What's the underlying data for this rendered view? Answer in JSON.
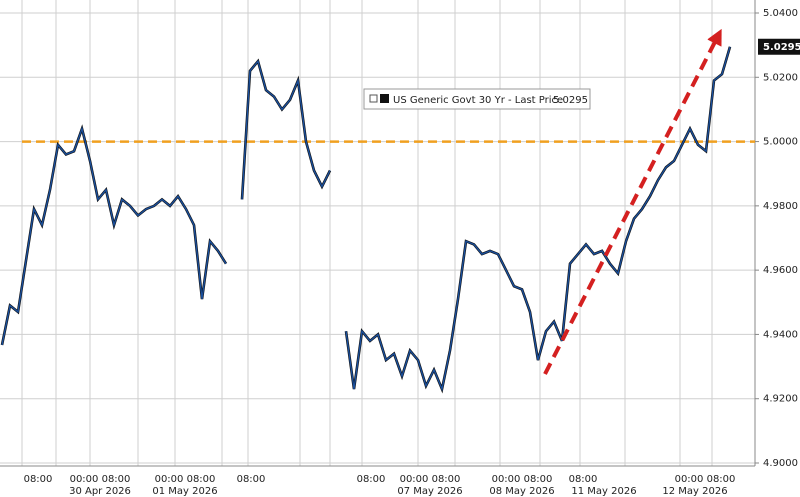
{
  "chart_data": {
    "type": "line",
    "series": [
      {
        "name": "US Generic Govt 30 Yr - Last Price",
        "color": "#1a4f9c",
        "values": [
          4.9367,
          4.949,
          4.947,
          4.963,
          4.979,
          4.974,
          4.985,
          4.999,
          4.996,
          4.997,
          5.004,
          4.994,
          4.982,
          4.985,
          4.974,
          4.982,
          4.98,
          4.977,
          4.979,
          4.98,
          4.982,
          4.98,
          4.983,
          4.979,
          4.974,
          4.951,
          4.969,
          4.966,
          4.962,
          null,
          4.982,
          5.022,
          5.025,
          5.016,
          5.014,
          5.01,
          5.013,
          5.019,
          5.0,
          4.991,
          4.986,
          4.991,
          null,
          4.941,
          4.923,
          4.941,
          4.938,
          4.94,
          4.932,
          4.934,
          4.927,
          4.935,
          4.932,
          4.924,
          4.929,
          4.923,
          4.935,
          4.951,
          4.969,
          4.968,
          4.965,
          4.966,
          4.965,
          4.96,
          4.955,
          4.954,
          4.947,
          4.932,
          4.941,
          4.944,
          4.938,
          4.962,
          4.965,
          4.968,
          4.965,
          4.966,
          4.962,
          4.959,
          4.969,
          4.976,
          4.979,
          4.983,
          4.988,
          4.992,
          4.994,
          4.999,
          5.004,
          4.999,
          4.997,
          5.019,
          5.021,
          5.0295
        ]
      }
    ],
    "last_price": 5.0295,
    "reference_line": {
      "value": 5.0,
      "color": "#f0a020"
    },
    "ylim": [
      4.9,
      5.04
    ],
    "yticks": [
      {
        "value": 4.9,
        "label": "4.9000"
      },
      {
        "value": 4.92,
        "label": "4.9200"
      },
      {
        "value": 4.94,
        "label": "4.9400"
      },
      {
        "value": 4.96,
        "label": "4.9600"
      },
      {
        "value": 4.98,
        "label": "4.9800"
      },
      {
        "value": 5.0,
        "label": "5.0000"
      },
      {
        "value": 5.02,
        "label": "5.0200"
      },
      {
        "value": 5.04,
        "label": "5.0400"
      }
    ],
    "x_time_labels": [
      "08:00",
      "00:00 08:00",
      "00:00 08:00",
      "08:00",
      "08:00",
      "00:00 08:00",
      "00:00 08:00",
      "08:00",
      "00:00 08:00"
    ],
    "x_date_labels": [
      "30 Apr 2026",
      "01 May 2026",
      "07 May 2026",
      "08 May 2026",
      "11 May 2026",
      "12 May 2026"
    ],
    "grid": true
  }
}
